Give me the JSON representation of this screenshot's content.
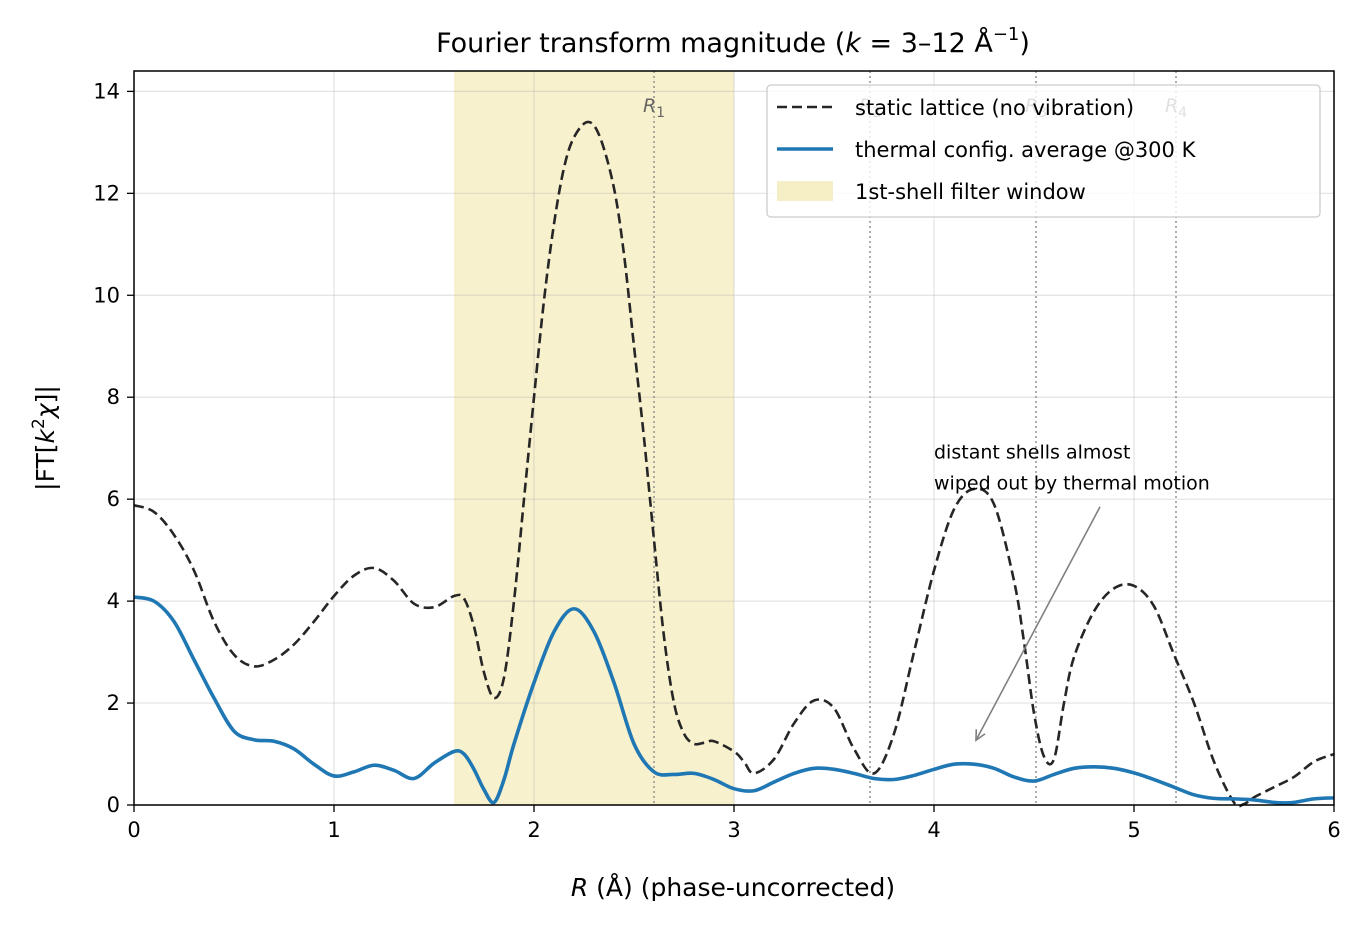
{
  "chart_data": {
    "type": "line",
    "title": "Fourier transform magnitude (k = 3–12 Å⁻¹)",
    "title_parts": {
      "pre": "Fourier transform magnitude (",
      "k": "k",
      "eq": " = 3–12 Å",
      "sup": "−1",
      "post": ")"
    },
    "xlabel": "R (Å)  (phase-uncorrected)",
    "xlabel_parts": {
      "var": "R",
      "rest": " (Å)  (phase-uncorrected)"
    },
    "ylabel": "|FT[k²χ]|",
    "xlim": [
      0,
      6
    ],
    "ylim": [
      0,
      14.4
    ],
    "xticks": [
      0,
      1,
      2,
      3,
      4,
      5,
      6
    ],
    "yticks": [
      0,
      2,
      4,
      6,
      8,
      10,
      12,
      14
    ],
    "grid": true,
    "legend_position": "top-right",
    "filter_window": {
      "name": "1st-shell filter window",
      "x0": 1.6,
      "x1": 3.0,
      "color": "#f5ecbc"
    },
    "shell_markers": [
      {
        "x": 2.6,
        "label": "R",
        "sub": "1"
      },
      {
        "x": 3.68,
        "label": "R",
        "sub": "2"
      },
      {
        "x": 4.51,
        "label": "R",
        "sub": "3"
      },
      {
        "x": 5.21,
        "label": "R",
        "sub": "4"
      }
    ],
    "annotation": {
      "lines": [
        "distant shells almost",
        "wiped out by thermal motion"
      ],
      "text_x": 4.0,
      "text_y": 6.8,
      "arrow_from": [
        4.83,
        5.85
      ],
      "arrow_to": [
        4.21,
        1.27
      ]
    },
    "series": [
      {
        "name": "static lattice (no vibration)",
        "style": "dashed",
        "color": "#262626",
        "points": [
          [
            0,
            5.88
          ],
          [
            0.1,
            5.75
          ],
          [
            0.2,
            5.3
          ],
          [
            0.3,
            4.6
          ],
          [
            0.4,
            3.6
          ],
          [
            0.5,
            2.95
          ],
          [
            0.6,
            2.72
          ],
          [
            0.7,
            2.85
          ],
          [
            0.8,
            3.15
          ],
          [
            0.9,
            3.6
          ],
          [
            1.0,
            4.1
          ],
          [
            1.1,
            4.5
          ],
          [
            1.2,
            4.65
          ],
          [
            1.3,
            4.4
          ],
          [
            1.4,
            3.95
          ],
          [
            1.5,
            3.88
          ],
          [
            1.6,
            4.1
          ],
          [
            1.65,
            4.05
          ],
          [
            1.7,
            3.5
          ],
          [
            1.75,
            2.6
          ],
          [
            1.8,
            2.1
          ],
          [
            1.85,
            2.5
          ],
          [
            1.9,
            4.0
          ],
          [
            1.95,
            6.0
          ],
          [
            2.0,
            8.0
          ],
          [
            2.05,
            9.9
          ],
          [
            2.1,
            11.4
          ],
          [
            2.15,
            12.5
          ],
          [
            2.2,
            13.1
          ],
          [
            2.27,
            13.4
          ],
          [
            2.33,
            13.1
          ],
          [
            2.4,
            12.1
          ],
          [
            2.45,
            10.8
          ],
          [
            2.5,
            9.0
          ],
          [
            2.55,
            7.2
          ],
          [
            2.6,
            5.2
          ],
          [
            2.65,
            3.3
          ],
          [
            2.7,
            2.0
          ],
          [
            2.75,
            1.4
          ],
          [
            2.8,
            1.2
          ],
          [
            2.85,
            1.22
          ],
          [
            2.9,
            1.25
          ],
          [
            3.0,
            1.05
          ],
          [
            3.05,
            0.85
          ],
          [
            3.1,
            0.62
          ],
          [
            3.2,
            0.9
          ],
          [
            3.3,
            1.6
          ],
          [
            3.4,
            2.05
          ],
          [
            3.5,
            1.9
          ],
          [
            3.6,
            1.1
          ],
          [
            3.7,
            0.62
          ],
          [
            3.8,
            1.4
          ],
          [
            3.9,
            3.0
          ],
          [
            4.0,
            4.6
          ],
          [
            4.1,
            5.8
          ],
          [
            4.2,
            6.2
          ],
          [
            4.3,
            5.9
          ],
          [
            4.4,
            4.4
          ],
          [
            4.45,
            3.2
          ],
          [
            4.5,
            1.8
          ],
          [
            4.55,
            0.95
          ],
          [
            4.6,
            0.9
          ],
          [
            4.65,
            2.0
          ],
          [
            4.7,
            2.9
          ],
          [
            4.8,
            3.8
          ],
          [
            4.9,
            4.25
          ],
          [
            5.0,
            4.3
          ],
          [
            5.1,
            3.9
          ],
          [
            5.2,
            2.95
          ],
          [
            5.3,
            2.0
          ],
          [
            5.4,
            0.85
          ],
          [
            5.5,
            0.05
          ],
          [
            5.55,
            0.02
          ],
          [
            5.6,
            0.15
          ],
          [
            5.7,
            0.35
          ],
          [
            5.8,
            0.55
          ],
          [
            5.9,
            0.85
          ],
          [
            6.0,
            1.0
          ]
        ]
      },
      {
        "name": "thermal config. average @300 K",
        "style": "solid",
        "color": "#1f77b4",
        "points": [
          [
            0,
            4.08
          ],
          [
            0.1,
            4.0
          ],
          [
            0.2,
            3.6
          ],
          [
            0.3,
            2.85
          ],
          [
            0.4,
            2.1
          ],
          [
            0.5,
            1.45
          ],
          [
            0.6,
            1.28
          ],
          [
            0.7,
            1.25
          ],
          [
            0.8,
            1.1
          ],
          [
            0.9,
            0.8
          ],
          [
            1.0,
            0.57
          ],
          [
            1.1,
            0.65
          ],
          [
            1.2,
            0.78
          ],
          [
            1.3,
            0.68
          ],
          [
            1.4,
            0.52
          ],
          [
            1.5,
            0.82
          ],
          [
            1.6,
            1.05
          ],
          [
            1.65,
            1.0
          ],
          [
            1.7,
            0.7
          ],
          [
            1.75,
            0.3
          ],
          [
            1.8,
            0.05
          ],
          [
            1.85,
            0.5
          ],
          [
            1.9,
            1.2
          ],
          [
            2.0,
            2.4
          ],
          [
            2.1,
            3.4
          ],
          [
            2.2,
            3.85
          ],
          [
            2.3,
            3.4
          ],
          [
            2.4,
            2.4
          ],
          [
            2.5,
            1.2
          ],
          [
            2.6,
            0.65
          ],
          [
            2.7,
            0.6
          ],
          [
            2.8,
            0.62
          ],
          [
            2.9,
            0.5
          ],
          [
            3.0,
            0.32
          ],
          [
            3.1,
            0.28
          ],
          [
            3.2,
            0.45
          ],
          [
            3.3,
            0.62
          ],
          [
            3.4,
            0.72
          ],
          [
            3.5,
            0.7
          ],
          [
            3.6,
            0.62
          ],
          [
            3.7,
            0.52
          ],
          [
            3.8,
            0.5
          ],
          [
            3.9,
            0.58
          ],
          [
            4.0,
            0.7
          ],
          [
            4.1,
            0.8
          ],
          [
            4.2,
            0.8
          ],
          [
            4.3,
            0.72
          ],
          [
            4.4,
            0.55
          ],
          [
            4.5,
            0.47
          ],
          [
            4.6,
            0.6
          ],
          [
            4.7,
            0.72
          ],
          [
            4.8,
            0.75
          ],
          [
            4.9,
            0.72
          ],
          [
            5.0,
            0.63
          ],
          [
            5.1,
            0.5
          ],
          [
            5.2,
            0.35
          ],
          [
            5.3,
            0.2
          ],
          [
            5.4,
            0.13
          ],
          [
            5.5,
            0.12
          ],
          [
            5.6,
            0.1
          ],
          [
            5.7,
            0.05
          ],
          [
            5.75,
            0.04
          ],
          [
            5.8,
            0.05
          ],
          [
            5.9,
            0.12
          ],
          [
            6.0,
            0.14
          ]
        ]
      }
    ]
  }
}
